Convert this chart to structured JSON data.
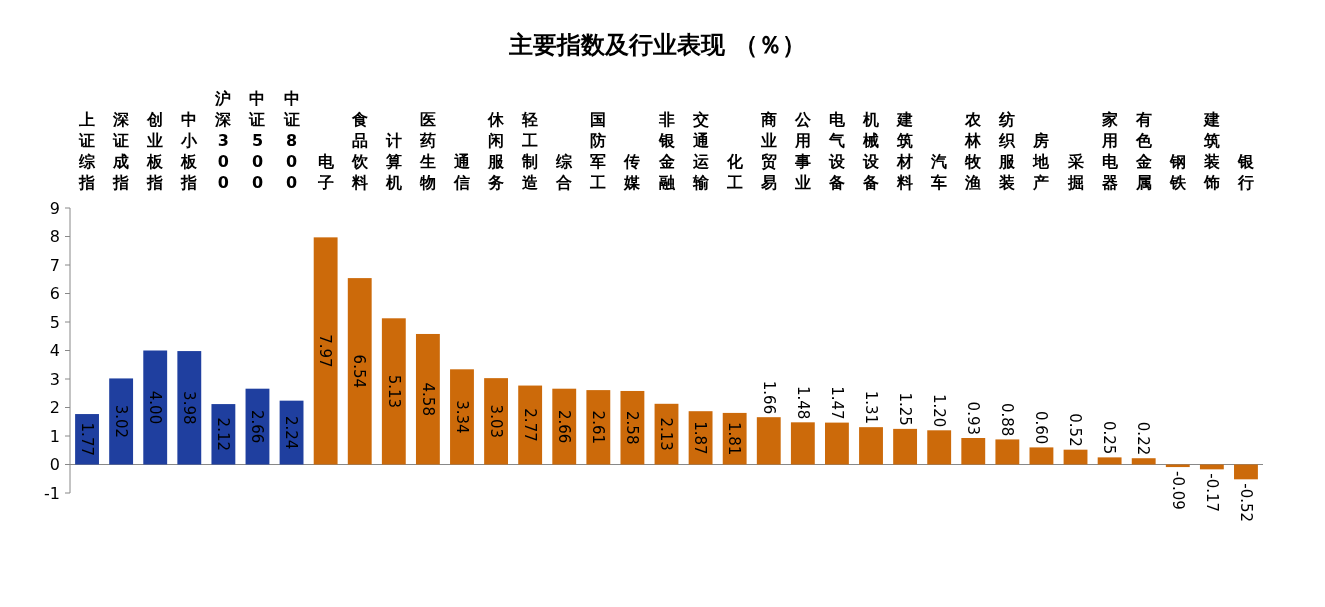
{
  "chart_data": {
    "type": "bar",
    "title": "主要指数及行业表现 （％）",
    "categories": [
      "上证综指",
      "深证成指",
      "创业板指",
      "中小板指",
      "沪深300",
      "中证500",
      "中证800",
      "电子",
      "食品饮料",
      "计算机",
      "医药生物",
      "通信",
      "休闲服务",
      "轻工制造",
      "综合",
      "国防军工",
      "传媒",
      "非银金融",
      "交通运输",
      "化工",
      "商业贸易",
      "公用事业",
      "电气设备",
      "机械设备",
      "建筑材料",
      "汽车",
      "农林牧渔",
      "纺织服装",
      "房地产",
      "采掘",
      "家用电器",
      "有色金属",
      "钢铁",
      "建筑装饰",
      "银行"
    ],
    "values": [
      1.77,
      3.02,
      4.0,
      3.98,
      2.12,
      2.66,
      2.24,
      7.97,
      6.54,
      5.13,
      4.58,
      3.34,
      3.03,
      2.77,
      2.66,
      2.61,
      2.58,
      2.13,
      1.87,
      1.81,
      1.66,
      1.48,
      1.47,
      1.31,
      1.25,
      1.2,
      0.93,
      0.88,
      0.6,
      0.52,
      0.25,
      0.22,
      -0.09,
      -0.17,
      -0.52
    ],
    "value_labels": [
      "1.77",
      "3.02",
      "4.00",
      "3.98",
      "2.12",
      "2.66",
      "2.24",
      "7.97",
      "6.54",
      "5.13",
      "4.58",
      "3.34",
      "3.03",
      "2.77",
      "2.66",
      "2.61",
      "2.58",
      "2.13",
      "1.87",
      "1.81",
      "1.66",
      "1.48",
      "1.47",
      "1.31",
      "1.25",
      "1.20",
      "0.93",
      "0.88",
      "0.60",
      "0.52",
      "0.25",
      "0.22",
      "-0.09",
      "-0.17",
      "-0.52"
    ],
    "colors": [
      "#1f3f9f",
      "#1f3f9f",
      "#1f3f9f",
      "#1f3f9f",
      "#1f3f9f",
      "#1f3f9f",
      "#1f3f9f",
      "#cc6a0a",
      "#cc6a0a",
      "#cc6a0a",
      "#cc6a0a",
      "#cc6a0a",
      "#cc6a0a",
      "#cc6a0a",
      "#cc6a0a",
      "#cc6a0a",
      "#cc6a0a",
      "#cc6a0a",
      "#cc6a0a",
      "#cc6a0a",
      "#cc6a0a",
      "#cc6a0a",
      "#cc6a0a",
      "#cc6a0a",
      "#cc6a0a",
      "#cc6a0a",
      "#cc6a0a",
      "#cc6a0a",
      "#cc6a0a",
      "#cc6a0a",
      "#cc6a0a",
      "#cc6a0a",
      "#cc6a0a",
      "#cc6a0a",
      "#cc6a0a"
    ],
    "ylim": [
      -1,
      9
    ],
    "yticks": [
      -1,
      0,
      1,
      2,
      3,
      4,
      5,
      6,
      7,
      8,
      9
    ]
  }
}
